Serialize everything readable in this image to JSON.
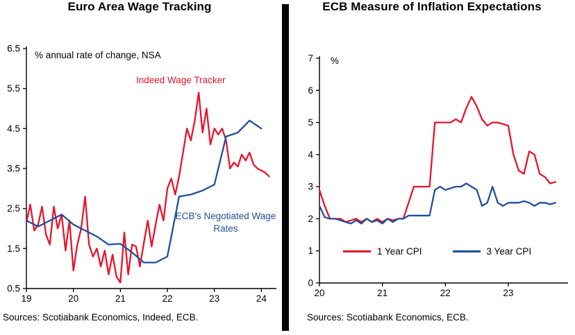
{
  "chart_data": [
    {
      "type": "line",
      "title": "Euro Area Wage Tracking",
      "axis_note": "% annual rate of change, NSA",
      "xlim": [
        19,
        24.32
      ],
      "ylim": [
        0.5,
        6.5
      ],
      "x_ticks": [
        19,
        20,
        21,
        22,
        23,
        24
      ],
      "y_ticks": [
        0.5,
        1.5,
        2.5,
        3.5,
        4.5,
        5.5,
        6.5
      ],
      "grid": false,
      "legend_position": "labels-on-chart",
      "sources": "Sources: Scotiabank Economics, Indeed, ECB.",
      "series": [
        {
          "name": "Indeed Wage Tracker",
          "color": "#e8132b",
          "x_start": 19.0,
          "x_step": 0.08333,
          "values": [
            2.15,
            2.6,
            1.95,
            2.1,
            2.55,
            1.85,
            1.6,
            2.55,
            2.0,
            2.35,
            1.45,
            2.2,
            0.95,
            1.6,
            2.0,
            2.8,
            1.6,
            1.3,
            1.5,
            1.05,
            1.45,
            0.85,
            1.35,
            0.8,
            0.65,
            1.9,
            0.85,
            1.6,
            1.55,
            1.05,
            1.65,
            2.2,
            1.55,
            2.1,
            2.6,
            2.2,
            3.0,
            3.25,
            2.85,
            3.3,
            3.9,
            4.5,
            4.2,
            4.7,
            5.4,
            4.4,
            5.0,
            4.1,
            4.5,
            4.35,
            4.5,
            4.2,
            3.5,
            3.65,
            3.55,
            3.85,
            3.7,
            3.9,
            3.6,
            3.5,
            3.45,
            3.4,
            3.3
          ]
        },
        {
          "name": "ECB's Negotiated Wage Rates",
          "color": "#1f4e9b",
          "x_start": 19.0,
          "x_step": 0.25,
          "values": [
            2.2,
            2.05,
            2.2,
            2.35,
            2.1,
            1.95,
            1.8,
            1.6,
            1.62,
            1.4,
            1.15,
            1.15,
            1.3,
            2.8,
            2.85,
            2.95,
            3.1,
            4.3,
            4.4,
            4.7,
            4.5
          ]
        }
      ]
    },
    {
      "type": "line",
      "title": "ECB Measure of Inflation Expectations",
      "axis_note": "%",
      "xlim": [
        20,
        23.95
      ],
      "ylim": [
        0,
        7
      ],
      "x_ticks": [
        20,
        21,
        22,
        23
      ],
      "y_ticks": [
        0,
        1,
        2,
        3,
        4,
        5,
        6,
        7
      ],
      "grid": false,
      "legend_position": "inside-bottom",
      "sources": "Sources: Scotiabank Economics, ECB.",
      "series": [
        {
          "name": "1 Year CPI",
          "color": "#e8132b",
          "x_start": 20.0,
          "x_step": 0.08333,
          "values": [
            2.9,
            2.4,
            2.0,
            2.0,
            2.0,
            1.9,
            1.95,
            2.0,
            1.9,
            2.0,
            1.9,
            2.0,
            1.9,
            2.0,
            1.95,
            2.0,
            2.0,
            2.5,
            3.0,
            3.0,
            3.0,
            3.0,
            5.0,
            5.0,
            5.0,
            5.0,
            5.1,
            5.0,
            5.45,
            5.8,
            5.5,
            5.1,
            4.9,
            5.0,
            5.0,
            4.95,
            4.9,
            4.0,
            3.5,
            3.4,
            4.1,
            4.0,
            3.4,
            3.3,
            3.1,
            3.15
          ]
        },
        {
          "name": "3 Year CPI",
          "color": "#1f4e9b",
          "x_start": 20.0,
          "x_step": 0.08333,
          "values": [
            2.4,
            2.05,
            2.0,
            2.0,
            1.95,
            1.9,
            1.85,
            1.95,
            1.85,
            2.0,
            1.9,
            1.95,
            1.85,
            2.0,
            1.9,
            2.0,
            2.0,
            2.1,
            2.1,
            2.1,
            2.1,
            2.1,
            2.9,
            3.0,
            2.9,
            2.95,
            3.0,
            3.0,
            3.1,
            3.0,
            2.9,
            2.4,
            2.5,
            3.0,
            2.5,
            2.4,
            2.5,
            2.5,
            2.5,
            2.55,
            2.5,
            2.4,
            2.5,
            2.5,
            2.45,
            2.5
          ]
        }
      ]
    }
  ]
}
